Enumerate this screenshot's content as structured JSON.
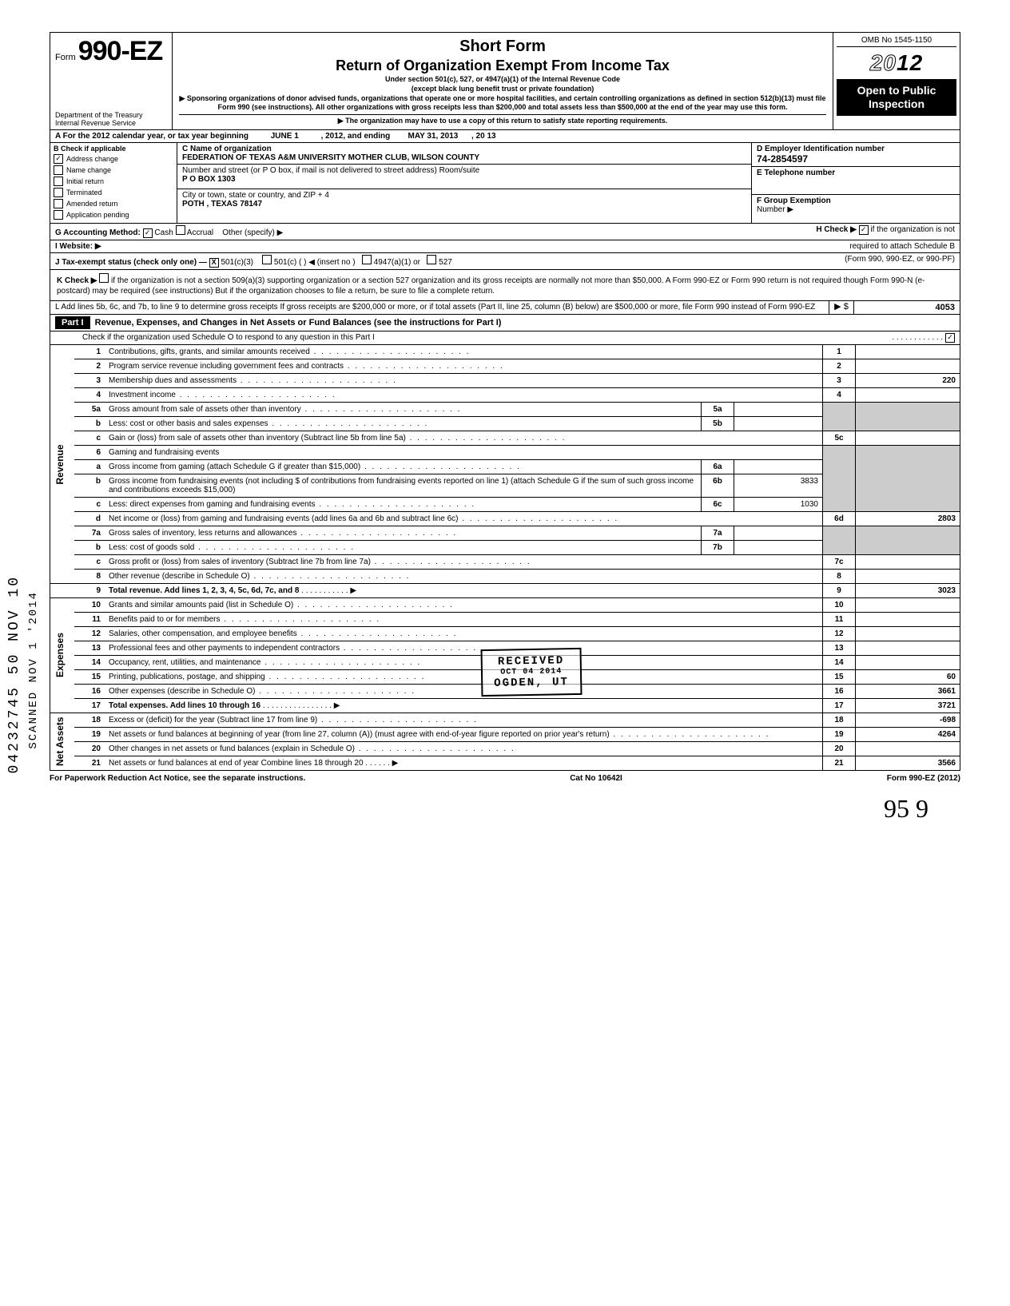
{
  "header": {
    "form_prefix": "Form",
    "form_number": "990-EZ",
    "dept1": "Department of the Treasury",
    "dept2": "Internal Revenue Service",
    "title1": "Short Form",
    "title2": "Return of Organization Exempt From Income Tax",
    "sub1": "Under section 501(c), 527, or 4947(a)(1) of the Internal Revenue Code",
    "sub2": "(except black lung benefit trust or private foundation)",
    "sub3": "▶ Sponsoring organizations of donor advised funds, organizations that operate one or more hospital facilities, and certain controlling organizations as defined in section 512(b)(13) must file Form 990 (see instructions). All other organizations with gross receipts less than $200,000 and total assets less than $500,000 at the end of the year may use this form.",
    "sub4": "▶ The organization may have to use a copy of this return to satisfy state reporting requirements.",
    "omb": "OMB No 1545-1150",
    "year": "2012",
    "open": "Open to Public Inspection"
  },
  "rowA": {
    "label": "A For the 2012 calendar year, or tax year beginning",
    "begin": "JUNE 1",
    "mid": ", 2012, and ending",
    "end": "MAY 31, 2013",
    "tail": ", 20   13"
  },
  "colB": {
    "label": "B Check if applicable",
    "items": [
      {
        "label": "Address change",
        "checked": true
      },
      {
        "label": "Name change",
        "checked": false
      },
      {
        "label": "Initial return",
        "checked": false
      },
      {
        "label": "Terminated",
        "checked": false
      },
      {
        "label": "Amended return",
        "checked": false
      },
      {
        "label": "Application pending",
        "checked": false
      }
    ]
  },
  "colC": {
    "name_label": "C Name of organization",
    "name": "FEDERATION OF TEXAS A&M UNIVERSITY MOTHER CLUB, WILSON COUNTY",
    "addr_label": "Number and street (or P O  box, if mail is not delivered to street address)          Room/suite",
    "addr": "P O BOX 1303",
    "city_label": "City or town, state or country, and ZIP + 4",
    "city": "POTH , TEXAS 78147"
  },
  "colD": {
    "ein_label": "D Employer Identification number",
    "ein": "74-2854597",
    "tel_label": "E Telephone number",
    "group_label": "F Group Exemption",
    "group2": "Number ▶"
  },
  "rowG": {
    "label": "G Accounting Method:",
    "cash": "Cash",
    "accrual": "Accrual",
    "other": "Other (specify) ▶",
    "h": "H Check ▶",
    "h2": "if the organization is not",
    "h3": "required to attach Schedule B"
  },
  "rowI": {
    "label": "I Website: ▶",
    "pf": "(Form 990, 990-EZ, or 990-PF)"
  },
  "rowJ": {
    "label": "J Tax-exempt status (check only one) —",
    "a": "501(c)(3)",
    "b": "501(c) (",
    "c": ") ◀ (insert no )",
    "d": "4947(a)(1) or",
    "e": "527"
  },
  "rowK": {
    "label": "K Check ▶",
    "text": "if the organization is not a section 509(a)(3) supporting organization or a section 527 organization and its gross receipts are normally not more than $50,000. A Form 990-EZ or Form 990 return is not required though Form 990-N (e-postcard) may be required (see instructions)  But if the organization chooses to file a return, be sure to file a complete return."
  },
  "rowL": {
    "text": "L Add lines 5b, 6c, and 7b, to line 9 to determine gross receipts  If gross receipts are $200,000 or more, or if total assets (Part II, line 25, column (B) below) are $500,000 or more, file Form 990 instead of Form 990-EZ",
    "amt": "4053"
  },
  "part1": {
    "label": "Part I",
    "title": "Revenue, Expenses, and Changes in Net Assets or Fund Balances (see the instructions for Part I)",
    "check": "Check if the organization used Schedule O to respond to any question in this Part I"
  },
  "lines": {
    "l1": {
      "n": "1",
      "d": "Contributions, gifts, grants, and similar amounts received",
      "ln": "1",
      "amt": ""
    },
    "l2": {
      "n": "2",
      "d": "Program service revenue including government fees and contracts",
      "ln": "2",
      "amt": ""
    },
    "l3": {
      "n": "3",
      "d": "Membership dues and assessments",
      "ln": "3",
      "amt": "220"
    },
    "l4": {
      "n": "4",
      "d": "Investment income",
      "ln": "4",
      "amt": ""
    },
    "l5a": {
      "n": "5a",
      "d": "Gross amount from sale of assets other than inventory",
      "sn": "5a"
    },
    "l5b": {
      "n": "b",
      "d": "Less: cost or other basis and sales expenses",
      "sn": "5b"
    },
    "l5c": {
      "n": "c",
      "d": "Gain or (loss) from sale of assets other than inventory (Subtract line 5b from line 5a)",
      "ln": "5c",
      "amt": ""
    },
    "l6": {
      "n": "6",
      "d": "Gaming and fundraising events"
    },
    "l6a": {
      "n": "a",
      "d": "Gross income from gaming (attach Schedule G if greater than $15,000)",
      "sn": "6a"
    },
    "l6b": {
      "n": "b",
      "d": "Gross income from fundraising events (not including  $                   of contributions from fundraising events reported on line 1) (attach Schedule G if the sum of such gross income and contributions exceeds $15,000)",
      "sn": "6b",
      "sa": "3833"
    },
    "l6c": {
      "n": "c",
      "d": "Less: direct expenses from gaming and fundraising events",
      "sn": "6c",
      "sa": "1030"
    },
    "l6d": {
      "n": "d",
      "d": "Net income or (loss) from gaming and fundraising events (add lines 6a and 6b and subtract line 6c)",
      "ln": "6d",
      "amt": "2803"
    },
    "l7a": {
      "n": "7a",
      "d": "Gross sales of inventory, less returns and allowances",
      "sn": "7a"
    },
    "l7b": {
      "n": "b",
      "d": "Less: cost of goods sold",
      "sn": "7b"
    },
    "l7c": {
      "n": "c",
      "d": "Gross profit or (loss) from sales of inventory (Subtract line 7b from line 7a)",
      "ln": "7c",
      "amt": ""
    },
    "l8": {
      "n": "8",
      "d": "Other revenue (describe in Schedule O)",
      "ln": "8",
      "amt": ""
    },
    "l9": {
      "n": "9",
      "d": "Total revenue. Add lines 1, 2, 3, 4, 5c, 6d, 7c, and 8",
      "ln": "9",
      "amt": "3023"
    },
    "l10": {
      "n": "10",
      "d": "Grants and similar amounts paid (list in Schedule O)",
      "ln": "10",
      "amt": ""
    },
    "l11": {
      "n": "11",
      "d": "Benefits paid to or for members",
      "ln": "11",
      "amt": ""
    },
    "l12": {
      "n": "12",
      "d": "Salaries, other compensation, and employee benefits",
      "ln": "12",
      "amt": ""
    },
    "l13": {
      "n": "13",
      "d": "Professional fees and other payments to independent contractors",
      "ln": "13",
      "amt": ""
    },
    "l14": {
      "n": "14",
      "d": "Occupancy, rent, utilities, and maintenance",
      "ln": "14",
      "amt": ""
    },
    "l15": {
      "n": "15",
      "d": "Printing, publications, postage, and shipping",
      "ln": "15",
      "amt": "60"
    },
    "l16": {
      "n": "16",
      "d": "Other expenses (describe in Schedule O)",
      "ln": "16",
      "amt": "3661"
    },
    "l17": {
      "n": "17",
      "d": "Total expenses. Add lines 10 through 16",
      "ln": "17",
      "amt": "3721"
    },
    "l18": {
      "n": "18",
      "d": "Excess or (deficit) for the year (Subtract line 17 from line 9)",
      "ln": "18",
      "amt": "-698"
    },
    "l19": {
      "n": "19",
      "d": "Net assets or fund balances at beginning of year (from line 27, column (A)) (must agree with end-of-year figure reported on prior year's return)",
      "ln": "19",
      "amt": "4264"
    },
    "l20": {
      "n": "20",
      "d": "Other changes in net assets or fund balances (explain in Schedule O)",
      "ln": "20",
      "amt": ""
    },
    "l21": {
      "n": "21",
      "d": "Net assets or fund balances at end of year  Combine lines 18 through 20",
      "ln": "21",
      "amt": "3566"
    }
  },
  "sideLabels": {
    "revenue": "Revenue",
    "expenses": "Expenses",
    "netassets": "Net Assets"
  },
  "footer": {
    "left": "For Paperwork Reduction Act Notice, see the separate instructions.",
    "mid": "Cat No 10642I",
    "right": "Form 990-EZ (2012)"
  },
  "stamp": {
    "l1": "RECEIVED",
    "l2": "OCT 04 2014",
    "l3": "OGDEN, UT"
  },
  "margins": {
    "left1": "04232745 50 NOV 10",
    "left2": "SCANNED NOV 1 '2014"
  },
  "hand": "95    9"
}
